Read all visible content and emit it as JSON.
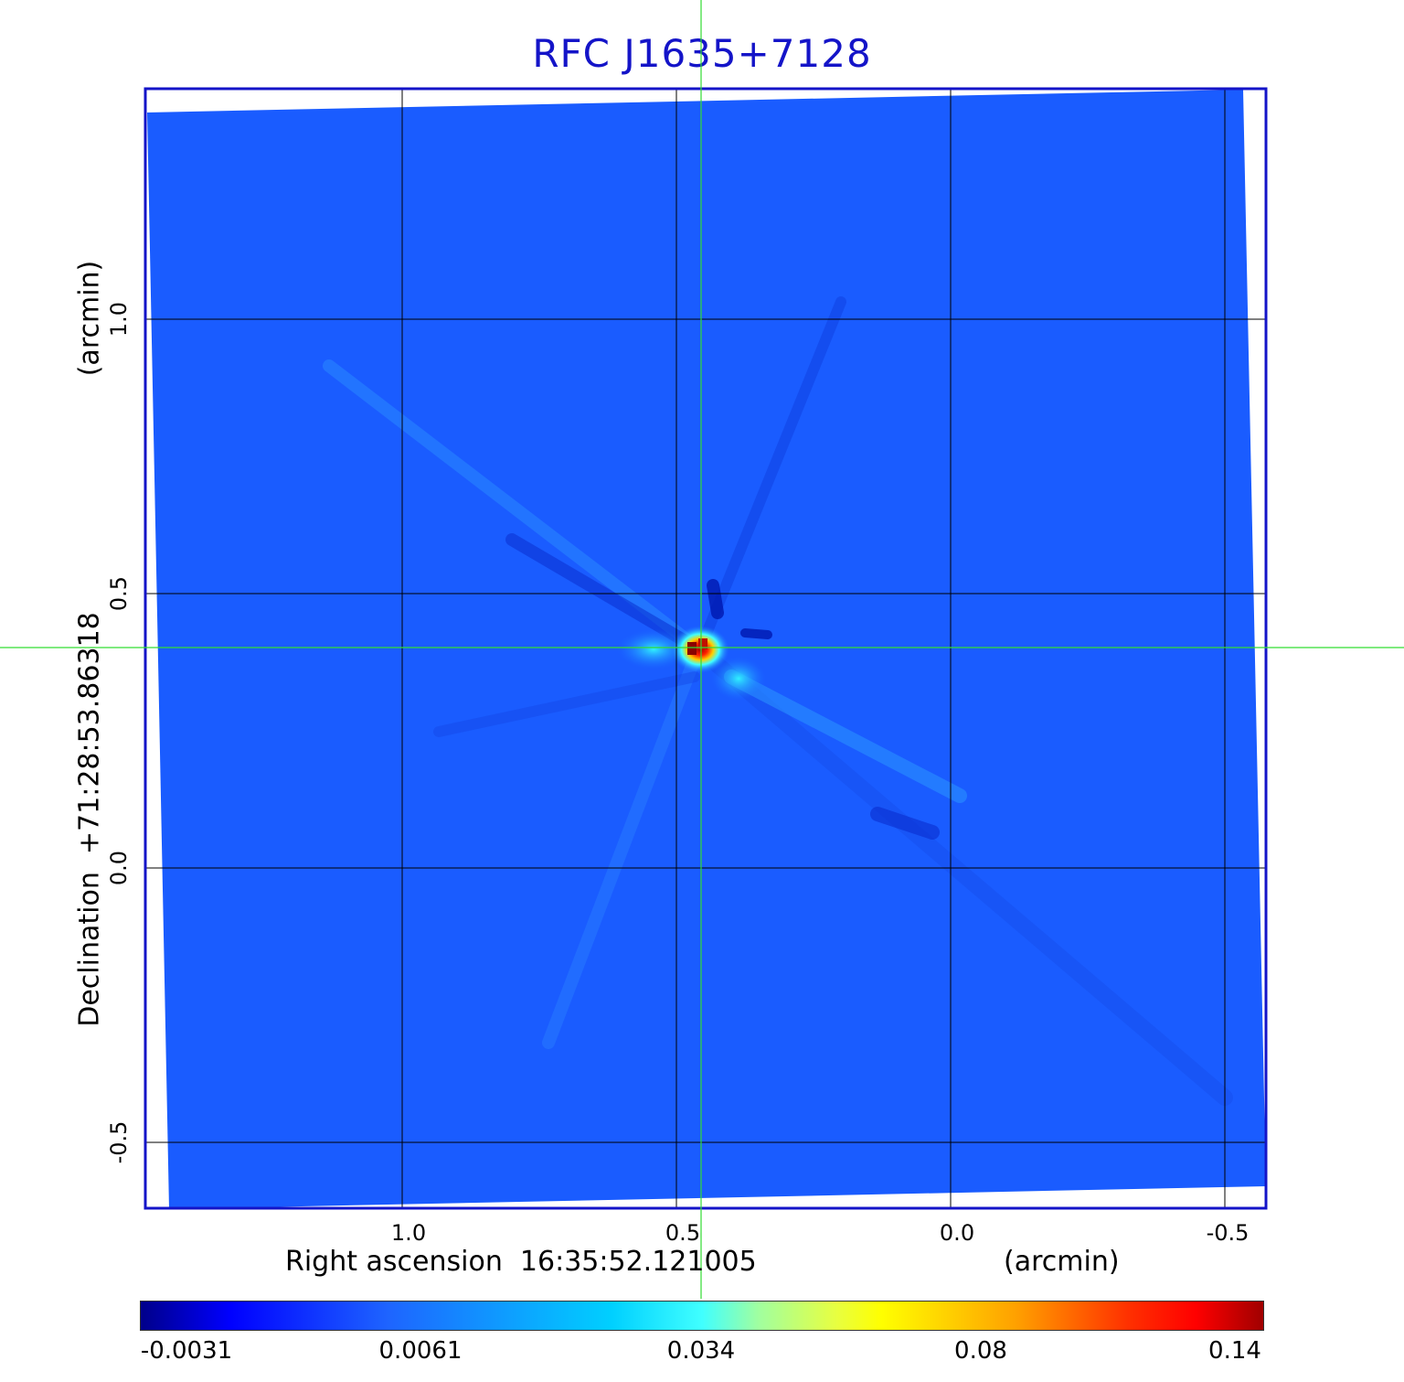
{
  "title": "RFC J1635+7128",
  "x_axis": {
    "label": "Right ascension  16:35:52.121005",
    "unit": "(arcmin)",
    "ticks": [
      "1.0",
      "0.5",
      "0.0",
      "-0.5"
    ]
  },
  "y_axis": {
    "label": "Declination  +71:28:53.86318",
    "unit": "(arcmin)",
    "ticks": [
      "1.0",
      "0.5",
      "0.0",
      "-0.5"
    ]
  },
  "colorbar": {
    "ticks": [
      "-0.0031",
      "0.0061",
      "0.034",
      "0.08",
      "0.14"
    ],
    "colormap": "jet"
  },
  "colors": {
    "title": "#1414c8",
    "frame": "#1414c8",
    "crosshair": "#33dd33",
    "background_field": "#1a5cff"
  }
}
